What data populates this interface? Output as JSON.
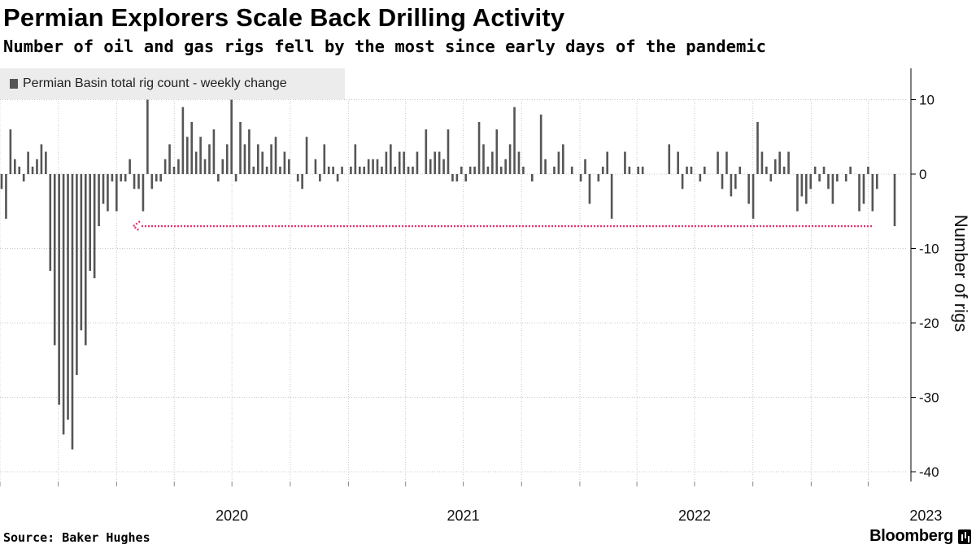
{
  "title": "Permian Explorers Scale Back Drilling Activity",
  "subtitle": "Number of oil and gas rigs fell by the most since early days of the pandemic",
  "source": "Source: Baker Hughes",
  "brand": "Bloomberg",
  "colors": {
    "bar": "#555555",
    "annotation": "#e8336d",
    "grid": "#c8c8c8",
    "legend_bg": "#ececec"
  },
  "chart_data": {
    "type": "bar",
    "legend": "Permian Basin total rig count - weekly change",
    "legend_position": "top-left",
    "ylabel": "Number of rigs",
    "y_axis_side": "right",
    "ylim": [
      -40,
      14
    ],
    "yticks": [
      "10",
      "0",
      "-10",
      "-20",
      "-30",
      "-40"
    ],
    "x_tick_labels": [
      "2020",
      "2021",
      "2022",
      "2023"
    ],
    "grid": "dotted vertical and horizontal",
    "x_start": "2019-07",
    "x_end": "2023-06",
    "values": [
      -2,
      -6,
      6,
      2,
      1,
      -1,
      3,
      1,
      2,
      4,
      3,
      -13,
      -23,
      -31,
      -35,
      -33,
      -37,
      -27,
      -21,
      -23,
      -13,
      -14,
      -7,
      -4,
      -5,
      -1,
      -5,
      -1,
      -1,
      2,
      -2,
      -2,
      -5,
      10,
      -2,
      -1,
      -1,
      2,
      4,
      1,
      2,
      9,
      5,
      7,
      3,
      5,
      2,
      4,
      6,
      -1,
      2,
      4,
      10,
      -1,
      7,
      4,
      6,
      1,
      4,
      3,
      1,
      4,
      5,
      1,
      3,
      2,
      0,
      -1,
      -2,
      5,
      0,
      2,
      -1,
      4,
      1,
      1,
      -1,
      1,
      0,
      1,
      4,
      1,
      1,
      2,
      2,
      2,
      1,
      3,
      4,
      1,
      3,
      3,
      1,
      1,
      3,
      0,
      6,
      2,
      3,
      3,
      2,
      6,
      -1,
      -1,
      1,
      -1,
      1,
      1,
      7,
      4,
      1,
      3,
      6,
      1,
      2,
      4,
      9,
      3,
      1,
      0,
      -1,
      0,
      8,
      2,
      0,
      1,
      3,
      4,
      0,
      1,
      0,
      -1,
      2,
      -4,
      0,
      -1,
      1,
      3,
      -6,
      0,
      0,
      3,
      1,
      0,
      1,
      1,
      0,
      0,
      0,
      0,
      0,
      4,
      0,
      3,
      -2,
      1,
      1,
      0,
      -1,
      1,
      0,
      0,
      3,
      -2,
      3,
      -3,
      -2,
      1,
      0,
      -4,
      -6,
      7,
      3,
      1,
      -1,
      2,
      3,
      1,
      3,
      0,
      -5,
      -3,
      -4,
      -2,
      1,
      -1,
      1,
      -2,
      -4,
      -1,
      0,
      -1,
      1,
      0,
      -5,
      -4,
      1,
      -5,
      -2,
      0,
      0,
      0,
      -7
    ],
    "annotations": [
      {
        "type": "arrow",
        "from_value": -7,
        "to_value": -7,
        "note": "dotted arrow pointing left at the same level as the final bar"
      }
    ]
  }
}
